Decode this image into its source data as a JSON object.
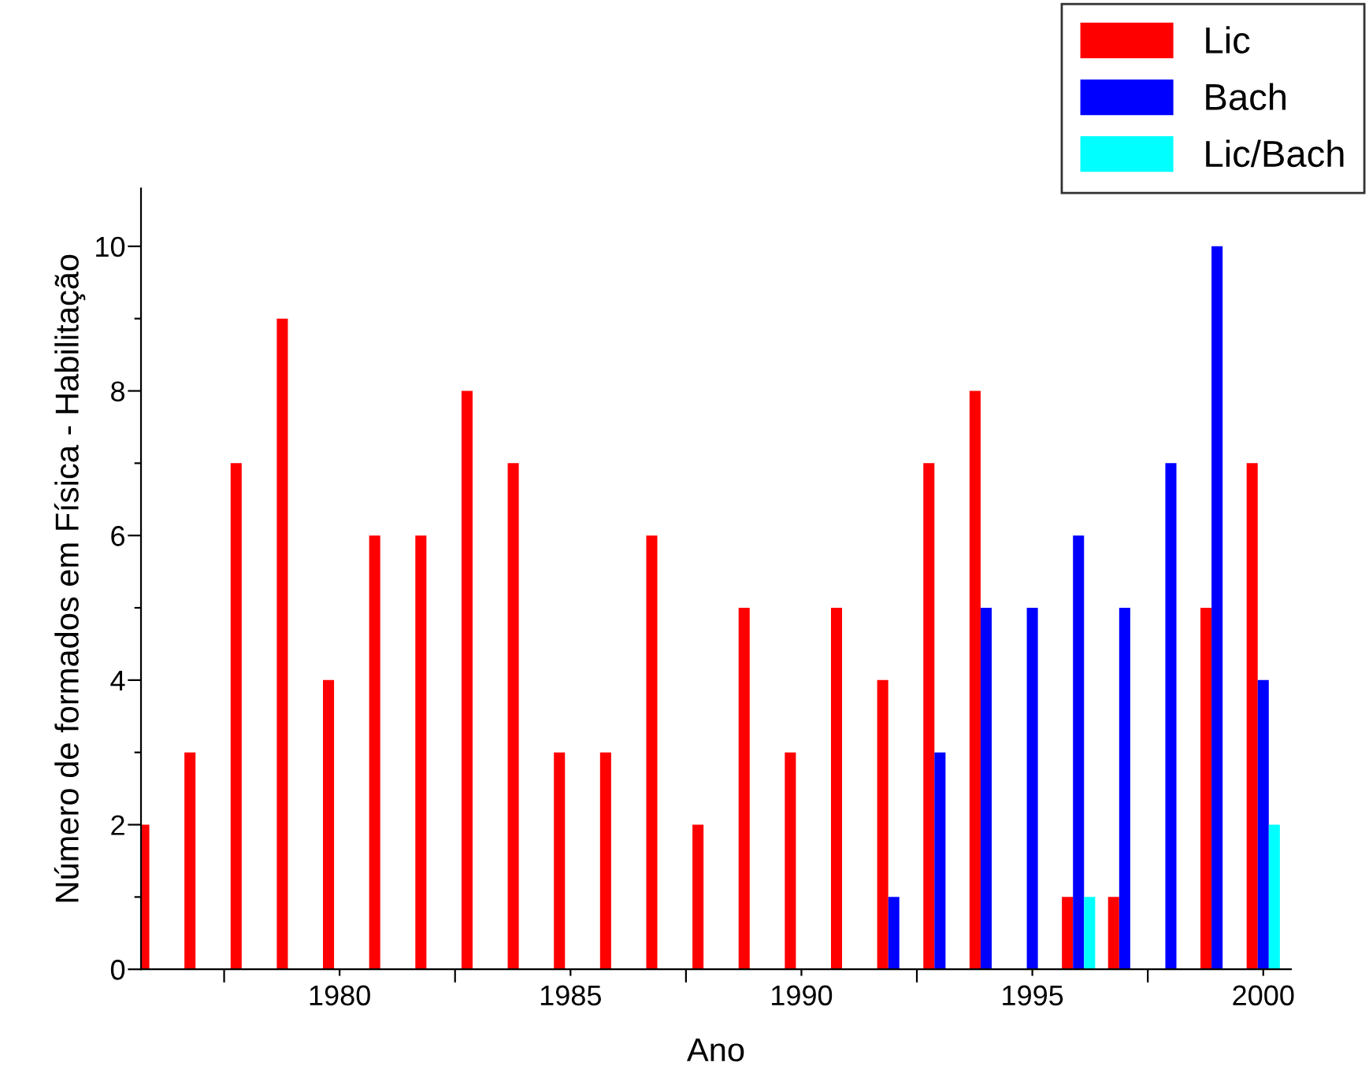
{
  "chart_data": {
    "type": "bar",
    "xlabel": "Ano",
    "ylabel": "Número de formados em Física - Habilitação",
    "x": [
      1976,
      1977,
      1978,
      1979,
      1980,
      1981,
      1982,
      1983,
      1984,
      1985,
      1986,
      1987,
      1988,
      1989,
      1990,
      1991,
      1992,
      1993,
      1994,
      1995,
      1996,
      1997,
      1998,
      1999,
      2000
    ],
    "series": [
      {
        "name": "Lic",
        "color": "#ff0000",
        "values": [
          2,
          3,
          7,
          9,
          4,
          6,
          6,
          8,
          7,
          3,
          3,
          6,
          2,
          5,
          3,
          5,
          4,
          7,
          8,
          null,
          1,
          1,
          null,
          5,
          7
        ]
      },
      {
        "name": "Bach",
        "color": "#0000ff",
        "values": [
          null,
          null,
          null,
          null,
          null,
          null,
          null,
          null,
          null,
          null,
          null,
          null,
          null,
          null,
          null,
          null,
          1,
          3,
          5,
          5,
          6,
          5,
          7,
          10,
          4
        ]
      },
      {
        "name": "Lic/Bach",
        "color": "#00ffff",
        "values": [
          null,
          null,
          null,
          null,
          null,
          null,
          null,
          null,
          null,
          null,
          null,
          null,
          null,
          null,
          null,
          null,
          null,
          null,
          null,
          null,
          1,
          null,
          null,
          null,
          2
        ]
      }
    ],
    "xlim": [
      1975.7,
      2000.6
    ],
    "ylim": [
      0,
      10.8
    ],
    "xticks": [
      {
        "value": 1977.5,
        "label": null
      },
      1980,
      {
        "value": 1982.5,
        "label": null
      },
      1985,
      {
        "value": 1987.5,
        "label": null
      },
      1990,
      {
        "value": 1992.5,
        "label": null
      },
      1995,
      {
        "value": 1997.5,
        "label": null
      },
      2000
    ],
    "yticks": [
      0,
      {
        "value": 1,
        "label": null
      },
      2,
      {
        "value": 3,
        "label": null
      },
      4,
      {
        "value": 5,
        "label": null
      },
      6,
      {
        "value": 7,
        "label": null
      },
      8,
      {
        "value": 9,
        "label": null
      },
      10
    ],
    "grid": false,
    "legend": "top right"
  }
}
